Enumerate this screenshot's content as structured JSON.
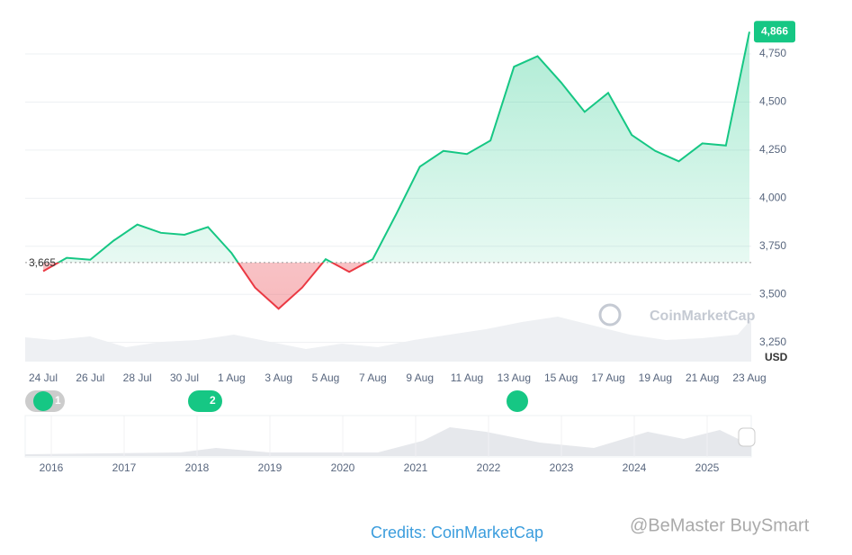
{
  "chart_data": {
    "type": "line",
    "categories": [
      "24 Jul",
      null,
      "26 Jul",
      null,
      "28 Jul",
      null,
      "30 Jul",
      null,
      "1 Aug",
      null,
      "3 Aug",
      null,
      "5 Aug",
      null,
      "7 Aug",
      null,
      "9 Aug",
      null,
      "11 Aug",
      null,
      "13 Aug",
      null,
      "15 Aug",
      null,
      "17 Aug",
      null,
      "19 Aug",
      null,
      "21 Aug",
      null,
      "23 Aug"
    ],
    "values": [
      3620,
      3690,
      3680,
      3780,
      3863,
      3820,
      3810,
      3850,
      3715,
      3535,
      3425,
      3535,
      3683,
      3617,
      3683,
      3918,
      4164,
      4246,
      4230,
      4300,
      4684,
      4739,
      4602,
      4449,
      4548,
      4329,
      4246,
      4192,
      4285,
      4274,
      4866
    ],
    "value_labels": [
      null,
      null,
      null,
      null,
      null,
      null,
      null,
      null,
      null,
      null,
      null,
      null,
      null,
      null,
      null,
      null,
      null,
      null,
      null,
      null,
      null,
      null,
      null,
      null,
      null,
      null,
      null,
      null,
      null,
      null,
      "4,866"
    ],
    "color": "#16c784",
    "down_color": "#ea3943",
    "baseline": {
      "value": 3665,
      "label": "3,665"
    },
    "ylim": [
      3150,
      4900
    ],
    "yticks": [
      {
        "value": 3250,
        "label": "3,250"
      },
      {
        "value": 3500,
        "label": "3,500"
      },
      {
        "value": 3750,
        "label": "3,750"
      },
      {
        "value": 4000,
        "label": "4,000"
      },
      {
        "value": 4250,
        "label": "4,250"
      },
      {
        "value": 4500,
        "label": "4,500"
      },
      {
        "value": 4750,
        "label": "4,750"
      }
    ],
    "grid": true,
    "unit": "USD",
    "watermark": "CoinMarketCap",
    "annotations": [
      "1",
      "2"
    ],
    "navigator_years": [
      "2016",
      "2017",
      "2018",
      "2019",
      "2020",
      "2021",
      "2022",
      "2023",
      "2024",
      "2025"
    ]
  },
  "credits": "Credits: CoinMarketCap",
  "source_watermark": "@BeMaster BuySmart"
}
